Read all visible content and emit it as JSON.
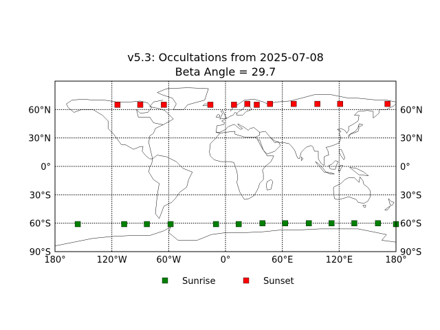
{
  "chart_data": {
    "type": "scatter",
    "title": "v5.3: Occultations from 2025-07-08",
    "subtitle": "Beta Angle = 29.7",
    "xlabel": "",
    "ylabel": "",
    "xlim": [
      -180,
      180
    ],
    "ylim": [
      -90,
      90
    ],
    "grid": true,
    "legend_position": "bottom",
    "x_ticks": [
      {
        "value": -180,
        "label": "180°"
      },
      {
        "value": -120,
        "label": "120°W"
      },
      {
        "value": -60,
        "label": "60°W"
      },
      {
        "value": 0,
        "label": "0°"
      },
      {
        "value": 60,
        "label": "60°E"
      },
      {
        "value": 120,
        "label": "120°E"
      },
      {
        "value": 180,
        "label": "180°"
      }
    ],
    "y_ticks": [
      {
        "value": 60,
        "label": "60°N"
      },
      {
        "value": 30,
        "label": "30°N"
      },
      {
        "value": 0,
        "label": "0°"
      },
      {
        "value": -30,
        "label": "30°S"
      },
      {
        "value": -60,
        "label": "60°S"
      },
      {
        "value": -90,
        "label": "90°S"
      }
    ],
    "series": [
      {
        "name": "Sunrise",
        "color": "#007f00",
        "marker": "square",
        "points": [
          {
            "x": -156,
            "y": -61
          },
          {
            "x": -107,
            "y": -61
          },
          {
            "x": -83,
            "y": -61
          },
          {
            "x": -58,
            "y": -61
          },
          {
            "x": -10,
            "y": -61
          },
          {
            "x": 14,
            "y": -61
          },
          {
            "x": 39,
            "y": -60
          },
          {
            "x": 63,
            "y": -60
          },
          {
            "x": 88,
            "y": -60
          },
          {
            "x": 112,
            "y": -60
          },
          {
            "x": 136,
            "y": -60
          },
          {
            "x": 161,
            "y": -60
          },
          {
            "x": 180,
            "y": -61
          }
        ]
      },
      {
        "name": "Sunset",
        "color": "#ff0000",
        "marker": "square",
        "points": [
          {
            "x": -114,
            "y": 65
          },
          {
            "x": -90,
            "y": 65
          },
          {
            "x": -65,
            "y": 65
          },
          {
            "x": -16,
            "y": 65
          },
          {
            "x": 9,
            "y": 65
          },
          {
            "x": 23,
            "y": 66
          },
          {
            "x": 33,
            "y": 65
          },
          {
            "x": 47,
            "y": 66
          },
          {
            "x": 72,
            "y": 66
          },
          {
            "x": 97,
            "y": 66
          },
          {
            "x": 121,
            "y": 66
          },
          {
            "x": 171,
            "y": 66
          }
        ]
      }
    ]
  }
}
